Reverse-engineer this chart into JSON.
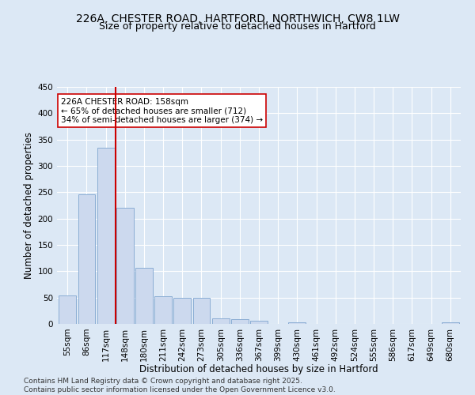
{
  "title": "226A, CHESTER ROAD, HARTFORD, NORTHWICH, CW8 1LW",
  "subtitle": "Size of property relative to detached houses in Hartford",
  "xlabel": "Distribution of detached houses by size in Hartford",
  "ylabel": "Number of detached properties",
  "categories": [
    "55sqm",
    "86sqm",
    "117sqm",
    "148sqm",
    "180sqm",
    "211sqm",
    "242sqm",
    "273sqm",
    "305sqm",
    "336sqm",
    "367sqm",
    "399sqm",
    "430sqm",
    "461sqm",
    "492sqm",
    "524sqm",
    "555sqm",
    "586sqm",
    "617sqm",
    "649sqm",
    "680sqm"
  ],
  "values": [
    54,
    246,
    335,
    220,
    107,
    53,
    50,
    49,
    10,
    9,
    6,
    0,
    3,
    0,
    0,
    0,
    0,
    0,
    0,
    0,
    3
  ],
  "bar_color": "#ccd9ee",
  "bar_edge_color": "#8aadd4",
  "background_color": "#dce8f5",
  "vline_color": "#cc0000",
  "annotation_text": "226A CHESTER ROAD: 158sqm\n← 65% of detached houses are smaller (712)\n34% of semi-detached houses are larger (374) →",
  "annotation_box_color": "#ffffff",
  "annotation_box_edge": "#cc0000",
  "ylim": [
    0,
    450
  ],
  "yticks": [
    0,
    50,
    100,
    150,
    200,
    250,
    300,
    350,
    400,
    450
  ],
  "footer1": "Contains HM Land Registry data © Crown copyright and database right 2025.",
  "footer2": "Contains public sector information licensed under the Open Government Licence v3.0.",
  "title_fontsize": 10,
  "subtitle_fontsize": 9,
  "axis_label_fontsize": 8.5,
  "tick_fontsize": 7.5,
  "annotation_fontsize": 7.5,
  "footer_fontsize": 6.5,
  "grid_color": "#ffffff"
}
